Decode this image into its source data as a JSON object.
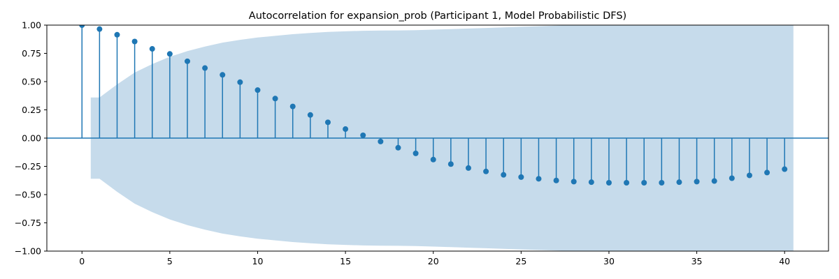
{
  "chart_data": {
    "type": "stem",
    "title": "Autocorrelation for expansion_prob (Participant 1, Model Probabilistic DFS)",
    "xlabel": "",
    "ylabel": "",
    "xlim": [
      -2,
      42.5
    ],
    "ylim": [
      -1.0,
      1.0
    ],
    "x_ticks": [
      0,
      5,
      10,
      15,
      20,
      25,
      30,
      35,
      40
    ],
    "x_tick_labels": [
      "0",
      "5",
      "10",
      "15",
      "20",
      "25",
      "30",
      "35",
      "40"
    ],
    "y_ticks": [
      1.0,
      0.75,
      0.5,
      0.25,
      0.0,
      -0.25,
      -0.5,
      -0.75,
      -1.0
    ],
    "y_tick_labels": [
      "1.00",
      "0.75",
      "0.50",
      "0.25",
      "0.00",
      "−0.25",
      "−0.50",
      "−0.75",
      "−1.00"
    ],
    "grid": false,
    "colors": {
      "stem": "#1f77b4",
      "confidence_band": "#c6dbeb"
    },
    "lags": [
      0,
      1,
      2,
      3,
      4,
      5,
      6,
      7,
      8,
      9,
      10,
      11,
      12,
      13,
      14,
      15,
      16,
      17,
      18,
      19,
      20,
      21,
      22,
      23,
      24,
      25,
      26,
      27,
      28,
      29,
      30,
      31,
      32,
      33,
      34,
      35,
      36,
      37,
      38,
      39,
      40
    ],
    "values": [
      1.0,
      0.965,
      0.915,
      0.855,
      0.79,
      0.745,
      0.68,
      0.62,
      0.56,
      0.495,
      0.425,
      0.35,
      0.28,
      0.205,
      0.14,
      0.08,
      0.025,
      -0.03,
      -0.085,
      -0.135,
      -0.19,
      -0.23,
      -0.265,
      -0.295,
      -0.325,
      -0.345,
      -0.36,
      -0.375,
      -0.385,
      -0.39,
      -0.395,
      -0.395,
      -0.395,
      -0.395,
      -0.39,
      -0.385,
      -0.38,
      -0.355,
      -0.33,
      -0.305,
      -0.275
    ],
    "confidence_band": {
      "x_start": 0.5,
      "x_end": 40.5,
      "lags": [
        1,
        2,
        3,
        4,
        5,
        6,
        7,
        8,
        9,
        10,
        11,
        12,
        13,
        14,
        15,
        16,
        17,
        18,
        19,
        20,
        21,
        22,
        23,
        24,
        25,
        26,
        27,
        28,
        29,
        30,
        31,
        32,
        33,
        34,
        35,
        36,
        37,
        38,
        39,
        40
      ],
      "upper": [
        0.36,
        0.475,
        0.58,
        0.655,
        0.72,
        0.77,
        0.81,
        0.845,
        0.87,
        0.89,
        0.905,
        0.92,
        0.93,
        0.94,
        0.945,
        0.95,
        0.952,
        0.953,
        0.955,
        0.96,
        0.965,
        0.97,
        0.975,
        0.98,
        0.985,
        0.99,
        0.995,
        1.0,
        1.0,
        1.0,
        1.0,
        1.0,
        1.0,
        1.0,
        1.0,
        1.0,
        1.0,
        1.0,
        1.0,
        1.0
      ]
    }
  }
}
